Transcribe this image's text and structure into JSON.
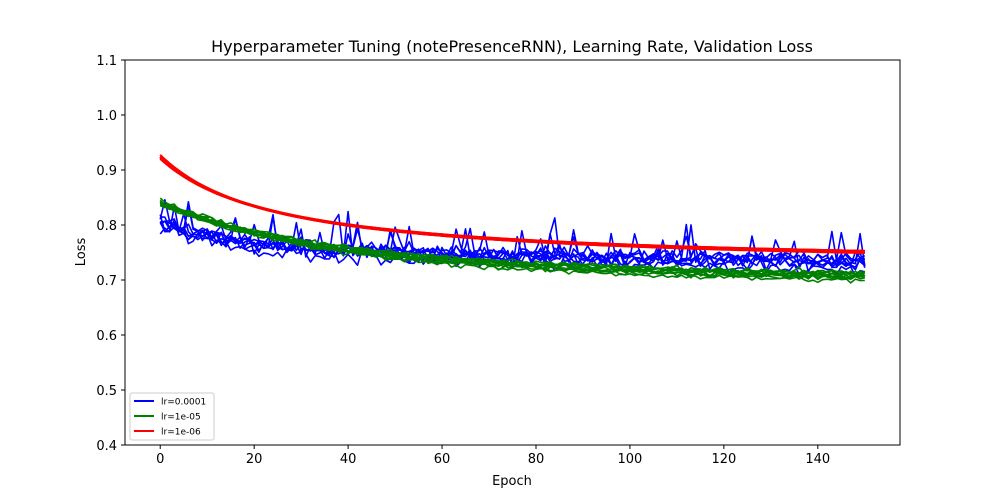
{
  "chart_data": {
    "type": "line",
    "title": "Hyperparameter Tuning (notePresenceRNN), Learning Rate, Validation Loss",
    "xlabel": "Epoch",
    "ylabel": "Loss",
    "xlim": [
      -7.5,
      157.5
    ],
    "ylim": [
      0.4,
      1.1
    ],
    "x_ticks": [
      "0",
      "20",
      "40",
      "60",
      "80",
      "100",
      "120",
      "140"
    ],
    "y_ticks": [
      "0.4",
      "0.5",
      "0.6",
      "0.7",
      "0.8",
      "0.9",
      "1.0",
      "1.1"
    ],
    "grid": false,
    "legend_position": "lower-left",
    "epochs": 151,
    "series": [
      {
        "name": "lr=0.0001",
        "color": "#0000ff",
        "runs": 8,
        "start": 0.805,
        "end_mean": 0.73,
        "end_spread": 0.012,
        "noise": 0.014,
        "spike_prob": 0.06,
        "spike_size": 0.06,
        "decay": 0.06
      },
      {
        "name": "lr=1e-05",
        "color": "#008000",
        "runs": 10,
        "start": 0.84,
        "end_mean": 0.705,
        "end_spread": 0.008,
        "noise": 0.005,
        "spike_prob": 0.0,
        "spike_size": 0.0,
        "decay": 0.03
      },
      {
        "name": "lr=1e-06",
        "color": "#ff0000",
        "runs": 8,
        "start": 0.925,
        "end_mean": 0.751,
        "end_spread": 0.002,
        "noise": 0.0005,
        "spike_prob": 0.0,
        "spike_size": 0.0,
        "shape": "smooth"
      }
    ]
  }
}
